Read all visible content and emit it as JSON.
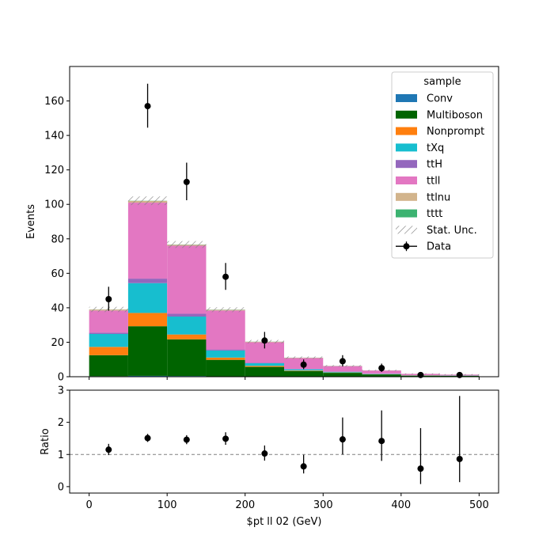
{
  "chart_data": [
    {
      "type": "bar",
      "stacked": true,
      "bin_edges": [
        0,
        50,
        100,
        150,
        200,
        250,
        300,
        350,
        400,
        450,
        500
      ],
      "xlim": [
        -25,
        525
      ],
      "ylim": [
        0,
        180
      ],
      "yticks": [
        0,
        20,
        40,
        60,
        80,
        100,
        120,
        140,
        160
      ],
      "ylabel": "Events",
      "legend": {
        "title": "sample",
        "placement": "top-right",
        "stat_label": "Stat. Unc.",
        "data_label": "Data"
      },
      "series": [
        {
          "name": "Conv",
          "color": "#1f77b4",
          "values": [
            0.3,
            0.5,
            0.4,
            0.2,
            0.1,
            0.1,
            0.05,
            0.05,
            0.02,
            0.02
          ]
        },
        {
          "name": "Multiboson",
          "color": "#006400",
          "values": [
            12.2,
            28.8,
            21.3,
            9.6,
            5.6,
            3.2,
            2.2,
            1.3,
            0.6,
            0.5
          ]
        },
        {
          "name": "Nonprompt",
          "color": "#ff7f0e",
          "values": [
            4.8,
            7.7,
            2.8,
            1.3,
            0.6,
            0.3,
            0.2,
            0.1,
            0.05,
            0.05
          ]
        },
        {
          "name": "tXq",
          "color": "#17becf",
          "values": [
            7.5,
            17.3,
            10.4,
            4.1,
            1.5,
            0.7,
            0.4,
            0.2,
            0.1,
            0.1
          ]
        },
        {
          "name": "ttH",
          "color": "#9467bd",
          "values": [
            0.8,
            2.6,
            1.6,
            0.6,
            0.3,
            0.2,
            0.1,
            0.05,
            0.05,
            0.03
          ]
        },
        {
          "name": "ttll",
          "color": "#e377c2",
          "values": [
            12.8,
            44.1,
            39.5,
            22.6,
            11.9,
            6.3,
            3.2,
            1.9,
            0.8,
            0.5
          ]
        },
        {
          "name": "ttlnu",
          "color": "#d2b48c",
          "values": [
            0.6,
            1.0,
            0.6,
            0.4,
            0.3,
            0.2,
            0.1,
            0.05,
            0.03,
            0.02
          ]
        },
        {
          "name": "tttt",
          "color": "#3cb371",
          "values": [
            0.05,
            0.1,
            0.1,
            0.1,
            0.05,
            0.05,
            0.05,
            0.03,
            0.02,
            0.02
          ]
        }
      ],
      "stat_unc": [
        1.5,
        2.5,
        2.0,
        1.4,
        1.0,
        0.7,
        0.5,
        0.4,
        0.3,
        0.3
      ],
      "data": {
        "x": [
          25,
          75,
          125,
          175,
          225,
          275,
          325,
          375,
          425,
          475
        ],
        "y": [
          45,
          157,
          113,
          58,
          21,
          7,
          9,
          5,
          1,
          1
        ],
        "yerr_low": [
          6.7,
          12.5,
          10.6,
          7.6,
          4.6,
          2.6,
          3.0,
          2.2,
          1.0,
          1.0
        ],
        "yerr_high": [
          7.2,
          13.0,
          11.2,
          8.0,
          5.0,
          3.0,
          3.5,
          2.6,
          1.2,
          1.2
        ]
      }
    },
    {
      "type": "scatter",
      "ylim": [
        -0.2,
        3
      ],
      "yticks": [
        0,
        1,
        2,
        3
      ],
      "xticks": [
        0,
        100,
        200,
        300,
        400,
        500
      ],
      "ylabel": "Ratio",
      "xlabel": "$pt ll 02 (GeV)",
      "reference_line": 1,
      "x": [
        25,
        75,
        125,
        175,
        225,
        275,
        325,
        375,
        425,
        475
      ],
      "y": [
        1.15,
        1.51,
        1.46,
        1.49,
        1.03,
        0.63,
        1.47,
        1.42,
        0.56,
        0.86
      ],
      "yerr_low": [
        0.17,
        0.12,
        0.14,
        0.19,
        0.22,
        0.22,
        0.47,
        0.62,
        0.48,
        0.72
      ],
      "yerr_high": [
        0.18,
        0.13,
        0.14,
        0.2,
        0.25,
        0.36,
        0.68,
        0.95,
        1.26,
        1.96
      ]
    }
  ]
}
